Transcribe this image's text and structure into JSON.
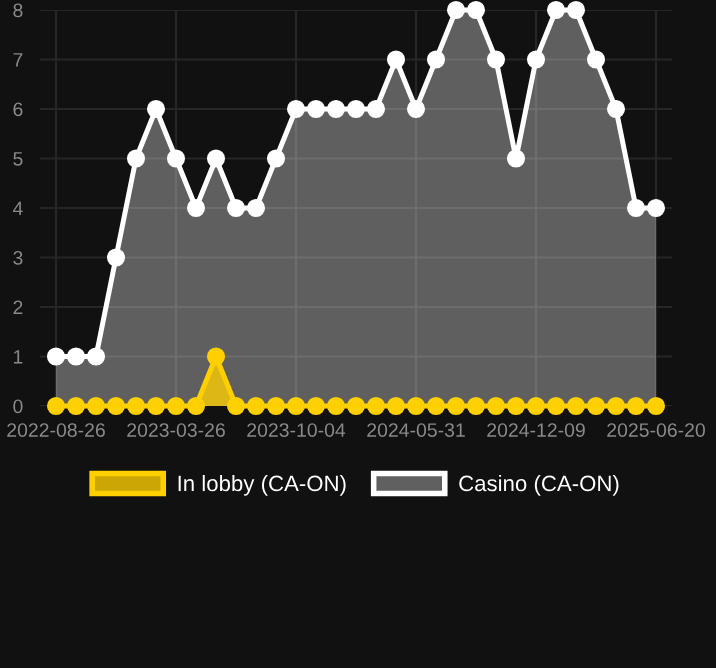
{
  "chart_data": {
    "type": "area",
    "categories": [
      "2022-08-26",
      null,
      null,
      null,
      null,
      null,
      "2023-03-26",
      null,
      null,
      null,
      null,
      null,
      "2023-10-04",
      null,
      null,
      null,
      null,
      null,
      "2024-05-31",
      null,
      null,
      null,
      null,
      null,
      "2024-12-09",
      null,
      null,
      null,
      null,
      null,
      "2025-06-20"
    ],
    "series": [
      {
        "name": "In lobby (CA-ON)",
        "color": "#ffd000",
        "values": [
          0,
          0,
          0,
          0,
          0,
          0,
          0,
          0,
          1,
          0,
          0,
          0,
          0,
          0,
          0,
          0,
          0,
          0,
          0,
          0,
          0,
          0,
          0,
          0,
          0,
          0,
          0,
          0,
          0,
          0,
          0
        ]
      },
      {
        "name": "Casino (CA-ON)",
        "color": "#ffffff",
        "values": [
          1,
          1,
          1,
          3,
          5,
          6,
          5,
          4,
          5,
          4,
          4,
          5,
          6,
          6,
          6,
          6,
          6,
          7,
          6,
          7,
          8,
          8,
          7,
          5,
          7,
          8,
          8,
          7,
          6,
          4,
          4
        ]
      }
    ],
    "ylim": [
      0,
      8
    ],
    "yticks": [
      0,
      1,
      2,
      3,
      4,
      5,
      6,
      7,
      8
    ],
    "grid": true,
    "legend": "bottom",
    "marker": "circle",
    "line_style": "solid"
  }
}
